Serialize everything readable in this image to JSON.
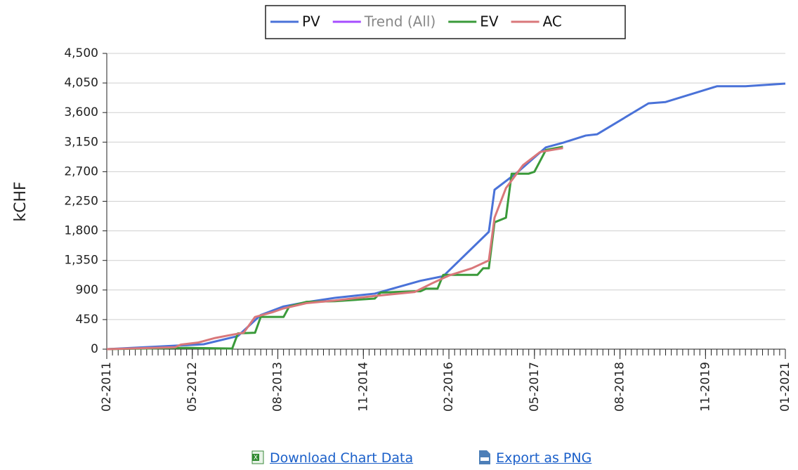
{
  "chart_data": {
    "type": "line",
    "y_label": "kCHF",
    "xlim": [
      "02-2011",
      "01-2021"
    ],
    "xticks": [
      "02-2011",
      "05-2012",
      "08-2013",
      "11-2014",
      "02-2016",
      "05-2017",
      "08-2018",
      "11-2019",
      "01-2021"
    ],
    "ylim": [
      0,
      4500
    ],
    "yticks": [
      0,
      450,
      900,
      {
        "value": 1350,
        "label": "1,350"
      },
      {
        "value": 1800,
        "label": "1,800"
      },
      {
        "value": 2250,
        "label": "2,250"
      },
      {
        "value": 2700,
        "label": "2,700"
      },
      {
        "value": 3150,
        "label": "3,150"
      },
      {
        "value": 3600,
        "label": "3,600"
      },
      {
        "value": 4050,
        "label": "4,050"
      },
      {
        "value": 4500,
        "label": "4,500"
      }
    ],
    "grid": true,
    "legend": "top",
    "series": [
      {
        "name": "PV",
        "color": "#4a72d8",
        "x": [
          "02-2011",
          "07-2012",
          "01-2013",
          "05-2013",
          "09-2013",
          "01-2014",
          "06-2014",
          "01-2015",
          "09-2015",
          "01-2016",
          "09-2016",
          "10-2016",
          "02-2017",
          "07-2017",
          "10-2017",
          "02-2018",
          "04-2018",
          "01-2019",
          "04-2019",
          "01-2020",
          "06-2020",
          "01-2021"
        ],
        "values": [
          0,
          75,
          200,
          520,
          650,
          715,
          780,
          845,
          1040,
          1110,
          1785,
          2425,
          2690,
          3070,
          3140,
          3250,
          3270,
          3740,
          3760,
          4000,
          4000,
          4040
        ]
      },
      {
        "name": "Trend (All)",
        "color": "#a64dff",
        "hidden": true,
        "x": [],
        "values": []
      },
      {
        "name": "EV",
        "color": "#3a9a3a",
        "x": [
          "02-2011",
          "04-2012",
          "12-2012",
          "01-2013",
          "04-2013",
          "05-2013",
          "09-2013",
          "10-2013",
          "01-2014",
          "06-2014",
          "01-2015",
          "02-2015",
          "08-2015",
          "09-2015",
          "10-2015",
          "12-2015",
          "01-2016",
          "07-2016",
          "08-2016",
          "09-2016",
          "10-2016",
          "12-2016",
          "01-2017",
          "04-2017",
          "05-2017",
          "07-2017",
          "10-2017"
        ],
        "values": [
          0,
          20,
          10,
          240,
          250,
          490,
          490,
          650,
          720,
          730,
          770,
          860,
          880,
          880,
          920,
          920,
          1130,
          1130,
          1230,
          1230,
          1930,
          2000,
          2670,
          2670,
          2700,
          3030,
          3080
        ]
      },
      {
        "name": "AC",
        "color": "#d9777a",
        "x": [
          "02-2011",
          "02-2012",
          "03-2012",
          "06-2012",
          "09-2012",
          "12-2012",
          "02-2013",
          "04-2013",
          "07-2013",
          "09-2013",
          "01-2014",
          "06-2014",
          "01-2015",
          "08-2015",
          "11-2015",
          "02-2016",
          "06-2016",
          "09-2016",
          "10-2016",
          "12-2016",
          "03-2017",
          "06-2017",
          "10-2017"
        ],
        "values": [
          0,
          30,
          70,
          100,
          170,
          220,
          250,
          490,
          560,
          620,
          700,
          740,
          810,
          870,
          1000,
          1120,
          1230,
          1350,
          2000,
          2450,
          2800,
          3000,
          3060
        ]
      }
    ]
  },
  "links": [
    "Download Chart Data",
    "Export as PNG"
  ]
}
